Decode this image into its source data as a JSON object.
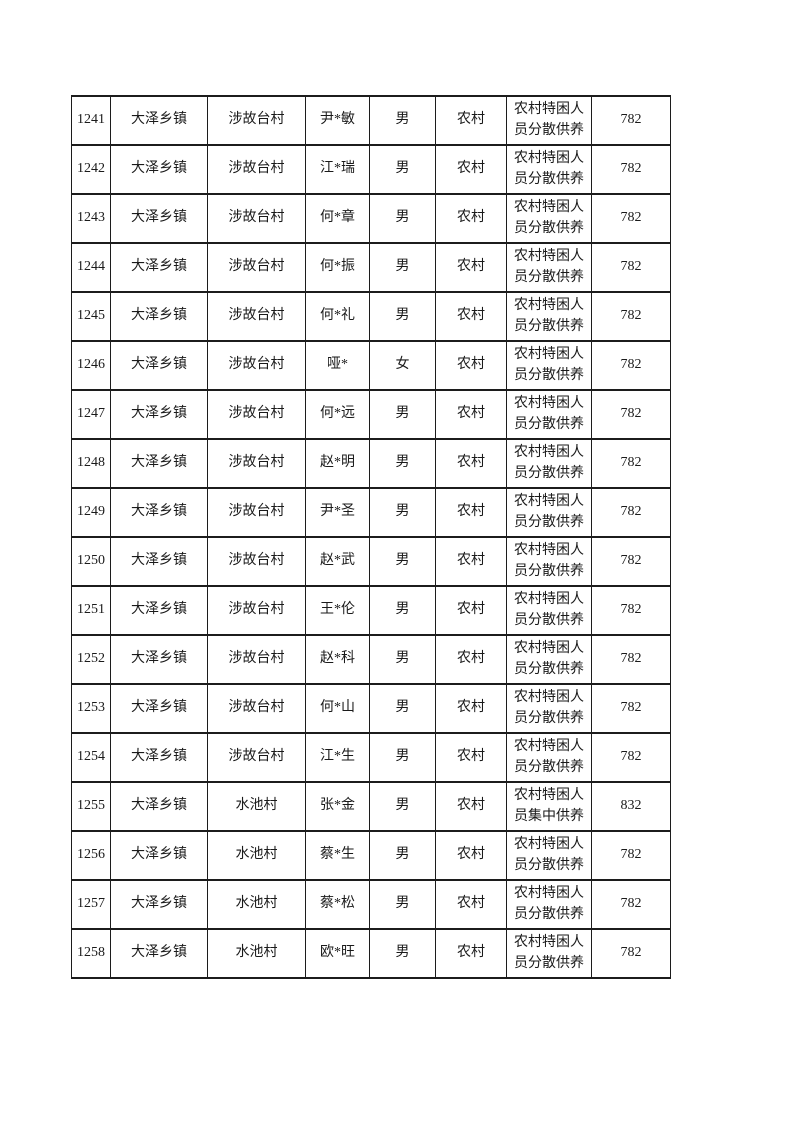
{
  "page": {
    "background_color": "#ffffff",
    "text_color": "#1a1a1a",
    "border_color": "#1c1c1c"
  },
  "table": {
    "columns": [
      "serial",
      "town",
      "village",
      "name",
      "gender",
      "region",
      "support-type",
      "amount"
    ],
    "rows": [
      [
        "1241",
        "大泽乡镇",
        "涉故台村",
        "尹*敏",
        "男",
        "农村",
        "农村特困人员分散供养",
        "782"
      ],
      [
        "1242",
        "大泽乡镇",
        "涉故台村",
        "江*瑞",
        "男",
        "农村",
        "农村特困人员分散供养",
        "782"
      ],
      [
        "1243",
        "大泽乡镇",
        "涉故台村",
        "何*章",
        "男",
        "农村",
        "农村特困人员分散供养",
        "782"
      ],
      [
        "1244",
        "大泽乡镇",
        "涉故台村",
        "何*振",
        "男",
        "农村",
        "农村特困人员分散供养",
        "782"
      ],
      [
        "1245",
        "大泽乡镇",
        "涉故台村",
        "何*礼",
        "男",
        "农村",
        "农村特困人员分散供养",
        "782"
      ],
      [
        "1246",
        "大泽乡镇",
        "涉故台村",
        "哑*",
        "女",
        "农村",
        "农村特困人员分散供养",
        "782"
      ],
      [
        "1247",
        "大泽乡镇",
        "涉故台村",
        "何*远",
        "男",
        "农村",
        "农村特困人员分散供养",
        "782"
      ],
      [
        "1248",
        "大泽乡镇",
        "涉故台村",
        "赵*明",
        "男",
        "农村",
        "农村特困人员分散供养",
        "782"
      ],
      [
        "1249",
        "大泽乡镇",
        "涉故台村",
        "尹*圣",
        "男",
        "农村",
        "农村特困人员分散供养",
        "782"
      ],
      [
        "1250",
        "大泽乡镇",
        "涉故台村",
        "赵*武",
        "男",
        "农村",
        "农村特困人员分散供养",
        "782"
      ],
      [
        "1251",
        "大泽乡镇",
        "涉故台村",
        "王*伦",
        "男",
        "农村",
        "农村特困人员分散供养",
        "782"
      ],
      [
        "1252",
        "大泽乡镇",
        "涉故台村",
        "赵*科",
        "男",
        "农村",
        "农村特困人员分散供养",
        "782"
      ],
      [
        "1253",
        "大泽乡镇",
        "涉故台村",
        "何*山",
        "男",
        "农村",
        "农村特困人员分散供养",
        "782"
      ],
      [
        "1254",
        "大泽乡镇",
        "涉故台村",
        "江*生",
        "男",
        "农村",
        "农村特困人员分散供养",
        "782"
      ],
      [
        "1255",
        "大泽乡镇",
        "水池村",
        "张*金",
        "男",
        "农村",
        "农村特困人员集中供养",
        "832"
      ],
      [
        "1256",
        "大泽乡镇",
        "水池村",
        "蔡*生",
        "男",
        "农村",
        "农村特困人员分散供养",
        "782"
      ],
      [
        "1257",
        "大泽乡镇",
        "水池村",
        "蔡*松",
        "男",
        "农村",
        "农村特困人员分散供养",
        "782"
      ],
      [
        "1258",
        "大泽乡镇",
        "水池村",
        "欧*旺",
        "男",
        "农村",
        "农村特困人员分散供养",
        "782"
      ]
    ]
  }
}
